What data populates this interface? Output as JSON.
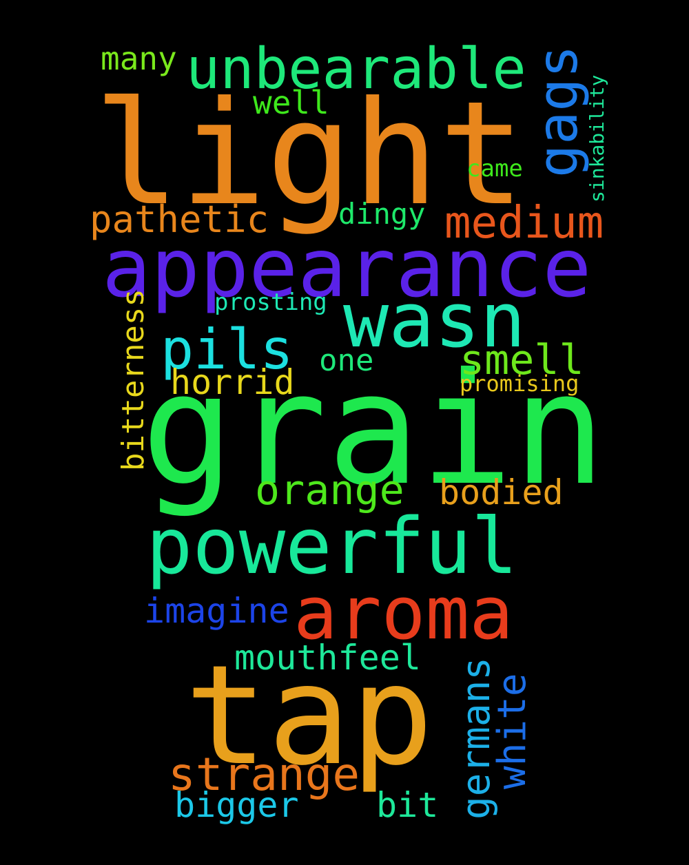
{
  "words": [
    {
      "id": "grain",
      "text": "grain",
      "color": "#1ee84e"
    },
    {
      "id": "light",
      "text": "light",
      "color": "#e8861c"
    },
    {
      "id": "tap",
      "text": "tap",
      "color": "#e8a01c"
    },
    {
      "id": "appearance",
      "text": "appearance",
      "color": "#5a22e8"
    },
    {
      "id": "powerful",
      "text": "powerful",
      "color": "#18e89a"
    },
    {
      "id": "aroma",
      "text": "aroma",
      "color": "#e83c1c"
    },
    {
      "id": "wasn",
      "text": "wasn",
      "color": "#1ee8b4"
    },
    {
      "id": "unbearable",
      "text": "unbearable",
      "color": "#1ee87a"
    },
    {
      "id": "gags",
      "text": "gags",
      "color": "#1c7ae8"
    },
    {
      "id": "medium",
      "text": "medium",
      "color": "#e8561c"
    },
    {
      "id": "pils",
      "text": "pils",
      "color": "#1ce0e0"
    },
    {
      "id": "smell",
      "text": "smell",
      "color": "#6ee81c"
    },
    {
      "id": "strange",
      "text": "strange",
      "color": "#e8761c"
    },
    {
      "id": "orange",
      "text": "orange",
      "color": "#4ee81c"
    },
    {
      "id": "pathetic",
      "text": "pathetic",
      "color": "#e8861c"
    },
    {
      "id": "horrid",
      "text": "horrid",
      "color": "#e8d81c"
    },
    {
      "id": "bodied",
      "text": "bodied",
      "color": "#e8a01c"
    },
    {
      "id": "imagine",
      "text": "imagine",
      "color": "#1c44e8"
    },
    {
      "id": "mouthfeel",
      "text": "mouthfeel",
      "color": "#1ee89a"
    },
    {
      "id": "bigger",
      "text": "bigger",
      "color": "#1cc8e8"
    },
    {
      "id": "bit",
      "text": "bit",
      "color": "#1ee89a"
    },
    {
      "id": "germans",
      "text": "germans",
      "color": "#1cb0e8"
    },
    {
      "id": "white",
      "text": "white",
      "color": "#1c6ee8"
    },
    {
      "id": "bitterness",
      "text": "bitterness",
      "color": "#e8d81c"
    },
    {
      "id": "many",
      "text": "many",
      "color": "#7ae81c"
    },
    {
      "id": "well",
      "text": "well",
      "color": "#3ee81c"
    },
    {
      "id": "dingy",
      "text": "dingy",
      "color": "#1ee86a"
    },
    {
      "id": "one",
      "text": "one",
      "color": "#1ee87a"
    },
    {
      "id": "came",
      "text": "came",
      "color": "#3ee81c"
    },
    {
      "id": "prosting",
      "text": "prosting",
      "color": "#1ee8b4"
    },
    {
      "id": "promising",
      "text": "promising",
      "color": "#e8c81c"
    },
    {
      "id": "sinkability",
      "text": "sinkability",
      "color": "#1ee89a"
    }
  ]
}
